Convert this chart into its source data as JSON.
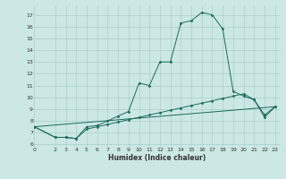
{
  "xlabel": "Humidex (Indice chaleur)",
  "bg_color": "#cce8e4",
  "grid_color": "#aacfcb",
  "line_color": "#1a6b5a",
  "xlim": [
    0,
    23.5
  ],
  "ylim": [
    5.8,
    17.8
  ],
  "xticks": [
    0,
    2,
    3,
    4,
    5,
    6,
    7,
    8,
    9,
    10,
    11,
    12,
    13,
    14,
    15,
    16,
    17,
    18,
    19,
    20,
    21,
    22,
    23
  ],
  "yticks": [
    6,
    7,
    8,
    9,
    10,
    11,
    12,
    13,
    14,
    15,
    16,
    17
  ],
  "line1_x": [
    0,
    2,
    3,
    4,
    5,
    6,
    7,
    8,
    9,
    10,
    11,
    12,
    13,
    14,
    15,
    16,
    17,
    18,
    19,
    20,
    21,
    22,
    23
  ],
  "line1_y": [
    7.5,
    6.6,
    6.6,
    6.5,
    7.5,
    7.6,
    8.0,
    8.4,
    8.8,
    11.2,
    11.0,
    13.0,
    13.0,
    16.3,
    16.5,
    17.2,
    17.0,
    15.8,
    10.5,
    10.1,
    9.8,
    8.3,
    9.2
  ],
  "line2_x": [
    0,
    2,
    3,
    4,
    5,
    6,
    7,
    8,
    9,
    10,
    11,
    12,
    13,
    14,
    15,
    16,
    17,
    18,
    19,
    20,
    21,
    22,
    23
  ],
  "line2_y": [
    7.5,
    6.6,
    6.6,
    6.5,
    7.3,
    7.5,
    7.7,
    7.9,
    8.1,
    8.3,
    8.5,
    8.7,
    8.9,
    9.1,
    9.3,
    9.5,
    9.7,
    9.9,
    10.1,
    10.3,
    9.8,
    8.5,
    9.2
  ],
  "line3_x": [
    0,
    23
  ],
  "line3_y": [
    7.5,
    9.2
  ]
}
